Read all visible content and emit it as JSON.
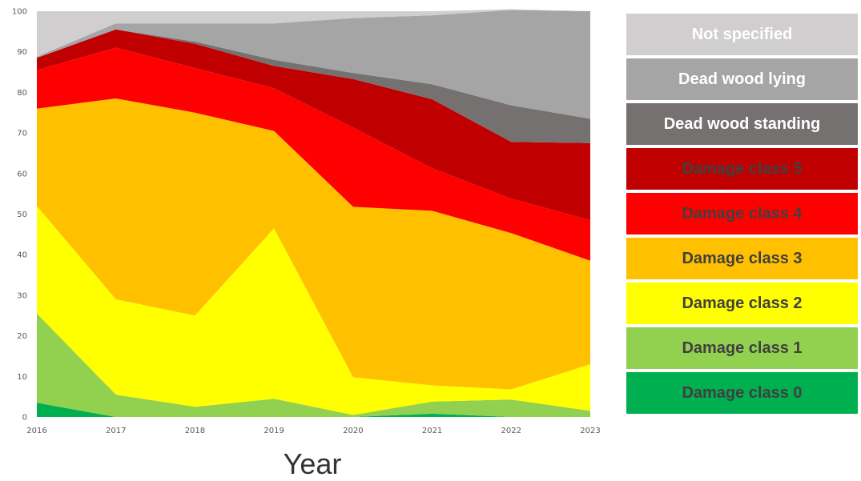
{
  "chart_data": {
    "type": "area",
    "stacked": true,
    "x": [
      2016,
      2017,
      2018,
      2019,
      2020,
      2021,
      2022,
      2023
    ],
    "xlabel": "Year",
    "ylabel": "",
    "ylim": [
      0,
      100
    ],
    "yticks": [
      0,
      10,
      20,
      30,
      40,
      50,
      60,
      70,
      80,
      90,
      100
    ],
    "grid": false,
    "legend_position": "right",
    "series": [
      {
        "name": "Damage class 0",
        "color": "#00b050",
        "text_color": "#404040",
        "values": [
          3.5,
          0.0,
          0.0,
          0.0,
          0.0,
          0.8,
          0.0,
          0.0
        ]
      },
      {
        "name": "Damage class 1",
        "color": "#92d050",
        "text_color": "#404040",
        "values": [
          22.0,
          5.5,
          2.5,
          4.5,
          0.5,
          3.0,
          4.3,
          1.5
        ]
      },
      {
        "name": "Damage class 2",
        "color": "#ffff00",
        "text_color": "#404040",
        "values": [
          26.5,
          23.5,
          22.5,
          42.0,
          9.3,
          4.0,
          2.5,
          11.5
        ]
      },
      {
        "name": "Damage class 3",
        "color": "#ffc000",
        "text_color": "#404040",
        "values": [
          24.0,
          49.5,
          50.0,
          24.0,
          42.0,
          43.0,
          38.5,
          25.5
        ]
      },
      {
        "name": "Damage class 4",
        "color": "#ff0000",
        "text_color": "#404040",
        "values": [
          9.5,
          12.5,
          11.0,
          10.5,
          19.5,
          10.5,
          8.5,
          10.0
        ]
      },
      {
        "name": "Damage class 5",
        "color": "#c00000",
        "text_color": "#404040",
        "values": [
          3.0,
          4.5,
          6.0,
          5.5,
          12.0,
          17.0,
          14.0,
          19.0
        ]
      },
      {
        "name": "Dead wood standing",
        "color": "#767171",
        "text_color": "#ffffff",
        "values": [
          0.0,
          0.0,
          0.5,
          1.5,
          1.5,
          3.7,
          9.0,
          6.0
        ]
      },
      {
        "name": "Dead wood lying",
        "color": "#a5a5a5",
        "text_color": "#ffffff",
        "values": [
          0.3,
          1.5,
          4.5,
          9.0,
          13.5,
          17.0,
          23.5,
          26.5
        ]
      },
      {
        "name": "Not specified",
        "color": "#d0cece",
        "text_color": "#ffffff",
        "values": [
          11.2,
          3.0,
          3.0,
          3.0,
          1.7,
          1.0,
          0.2,
          0.0
        ]
      }
    ]
  }
}
